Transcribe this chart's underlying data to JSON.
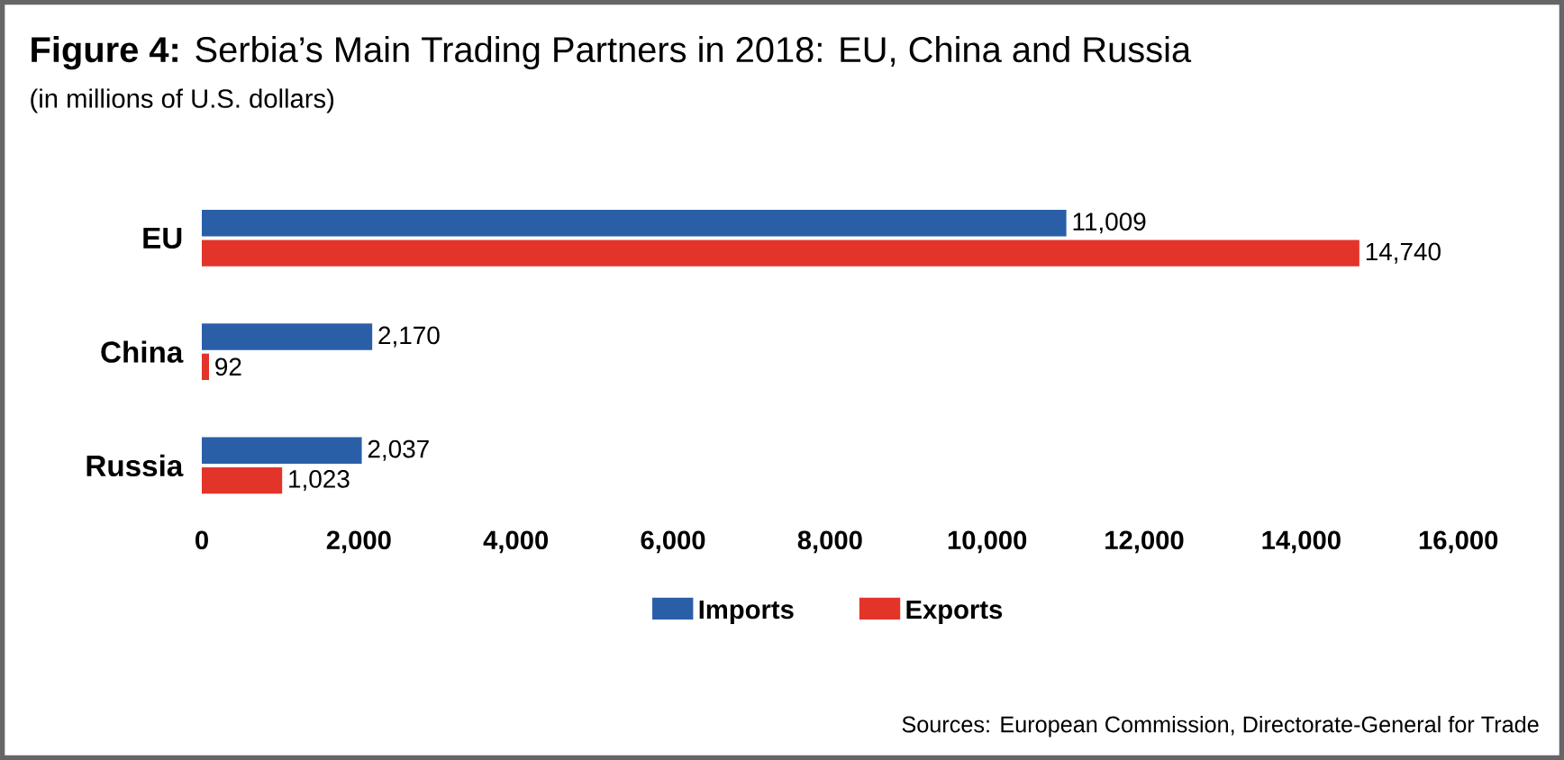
{
  "chart_data": {
    "type": "bar",
    "orientation": "horizontal",
    "title": "**Figure 4:** Serbia’s Main Trading Partners in 2018: EU, China and Russia",
    "subtitle": "(in millions of U.S. dollars)",
    "annotations": [
      "Sources: European Commission, Directorate-General for Trade"
    ],
    "categories": [
      "EU",
      "China",
      "Russia"
    ],
    "series": [
      {
        "name": "Imports",
        "color": "#2a5fa8",
        "values": [
          11009,
          2170,
          2037
        ],
        "value_labels": [
          "11,009",
          "2,170",
          "2,037"
        ]
      },
      {
        "name": "Exports",
        "color": "#e3342a",
        "values": [
          14740,
          92,
          1023
        ],
        "value_labels": [
          "14,740",
          "92",
          "1,023"
        ]
      }
    ],
    "xlim": [
      0,
      16000
    ],
    "xticks": [
      0,
      {
        "value": 2000,
        "label": "2,000"
      },
      {
        "value": 4000,
        "label": "4,000"
      },
      {
        "value": 6000,
        "label": "6,000"
      },
      {
        "value": 8000,
        "label": "8,000"
      },
      {
        "value": 10000,
        "label": "10,000"
      },
      {
        "value": 12000,
        "label": "12,000"
      },
      {
        "value": 14000,
        "label": "14,000"
      },
      {
        "value": 16000,
        "label": "16,000"
      }
    ],
    "grid": false,
    "legend": "bottom"
  }
}
